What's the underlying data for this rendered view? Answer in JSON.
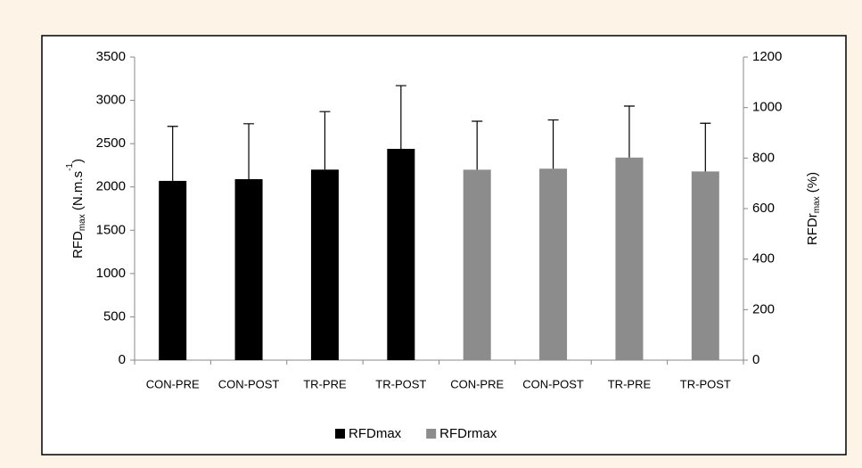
{
  "chart_data": {
    "type": "bar",
    "categories": [
      "CON-PRE",
      "CON-POST",
      "TR-PRE",
      "TR-POST",
      "CON-PRE",
      "CON-POST",
      "TR-PRE",
      "TR-POST"
    ],
    "ylabel": [
      "RFD",
      "max",
      " (N.m.s",
      "-1",
      ")"
    ],
    "y2label": [
      "RFDr",
      "max",
      " (%)"
    ],
    "series": [
      {
        "name": "RFDmax",
        "color": "#000000",
        "values": [
          2070,
          2090,
          2200,
          2440,
          null,
          null,
          null,
          null
        ],
        "errors": [
          630,
          640,
          670,
          730,
          null,
          null,
          null,
          null
        ]
      },
      {
        "name": "RFDrmax",
        "color": "#8c8c8c",
        "axis": "y2",
        "values": [
          null,
          null,
          null,
          null,
          754,
          758,
          802,
          747
        ],
        "errors": [
          null,
          null,
          null,
          null,
          192,
          193,
          204,
          191
        ]
      }
    ],
    "ylim": [
      0,
      3500
    ],
    "yticks": [
      0,
      500,
      1000,
      1500,
      2000,
      2500,
      3000,
      3500
    ],
    "y2lim": [
      0,
      1200
    ],
    "y2ticks": [
      0,
      200,
      400,
      600,
      800,
      1000,
      1200
    ],
    "legend": "bottom"
  }
}
